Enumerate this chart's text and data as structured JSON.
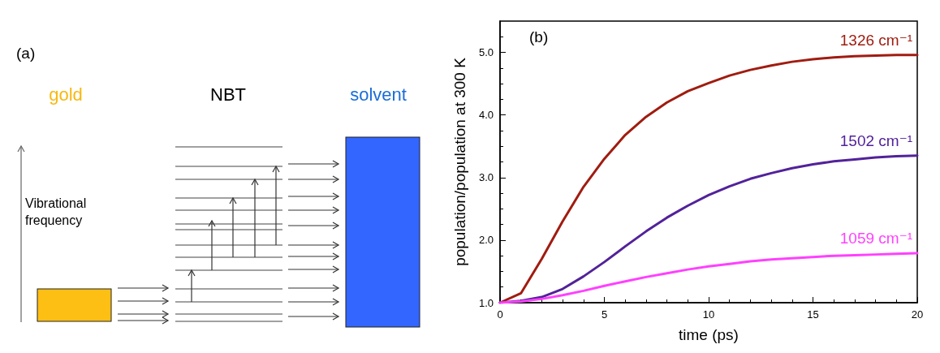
{
  "chart_data": [
    {
      "type": "other",
      "annotations": [
        "(a)",
        "gold",
        "NBT",
        "solvent",
        "Vibrational frequency"
      ]
    },
    {
      "type": "line",
      "annotations": [
        "(b)"
      ],
      "xlabel": "time (ps)",
      "ylabel": "population/population at 300 K",
      "x": [
        0,
        1,
        2,
        3,
        4,
        5,
        6,
        7,
        8,
        9,
        10,
        11,
        12,
        13,
        14,
        15,
        16,
        17,
        18,
        19,
        20
      ],
      "xlim": [
        0,
        20
      ],
      "xticks": [
        0,
        5,
        10,
        15,
        20
      ],
      "ylim": [
        1.0,
        5.5
      ],
      "yticks": [
        {
          "value": 1,
          "label": "1.0"
        },
        {
          "value": 2,
          "label": "2.0"
        },
        {
          "value": 3,
          "label": "3.0"
        },
        {
          "value": 4,
          "label": "4.0"
        },
        {
          "value": 5,
          "label": "5.0"
        }
      ],
      "grid": false,
      "legend": false,
      "marker": "none",
      "line_style": "solid",
      "series": [
        {
          "name": "1326 cm⁻¹",
          "color": "#a01c10",
          "values": [
            1.0,
            1.15,
            1.7,
            2.3,
            2.85,
            3.3,
            3.68,
            3.97,
            4.2,
            4.38,
            4.51,
            4.63,
            4.72,
            4.79,
            4.85,
            4.89,
            4.92,
            4.94,
            4.95,
            4.96,
            4.96
          ]
        },
        {
          "name": "1502 cm⁻¹",
          "color": "#52229a",
          "values": [
            1.0,
            1.03,
            1.09,
            1.22,
            1.42,
            1.65,
            1.9,
            2.14,
            2.36,
            2.55,
            2.72,
            2.86,
            2.98,
            3.07,
            3.15,
            3.21,
            3.26,
            3.29,
            3.32,
            3.34,
            3.35
          ]
        },
        {
          "name": "1059 cm⁻¹",
          "color": "#ff40ff",
          "values": [
            1.0,
            1.02,
            1.06,
            1.12,
            1.19,
            1.27,
            1.34,
            1.41,
            1.47,
            1.53,
            1.58,
            1.62,
            1.66,
            1.69,
            1.71,
            1.73,
            1.75,
            1.76,
            1.77,
            1.78,
            1.79
          ]
        }
      ]
    }
  ]
}
